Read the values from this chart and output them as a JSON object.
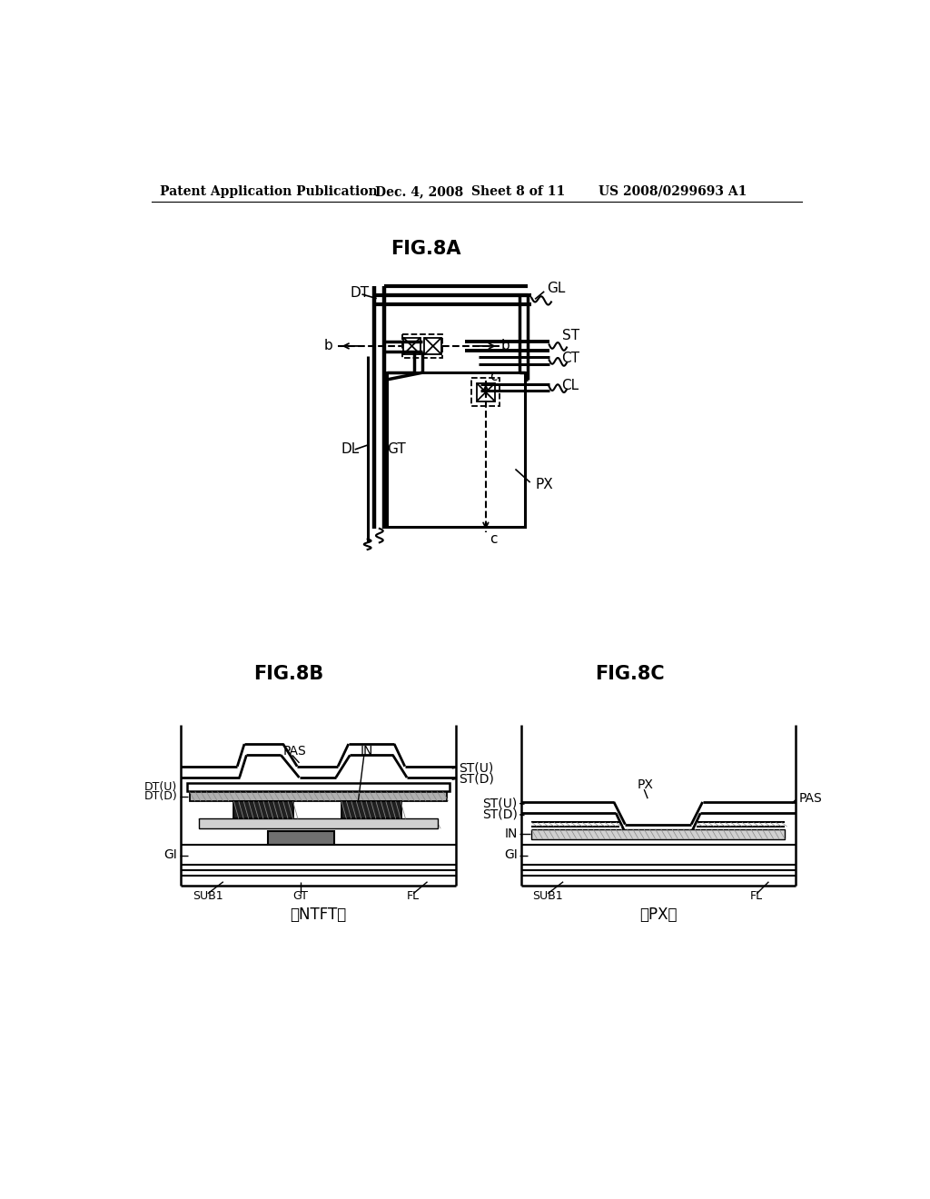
{
  "background_color": "#ffffff",
  "header_text": "Patent Application Publication",
  "header_date": "Dec. 4, 2008",
  "header_sheet": "Sheet 8 of 11",
  "header_patent": "US 2008/0299693 A1",
  "fig8a_title": "FIG.8A",
  "fig8b_title": "FIG.8B",
  "fig8c_title": "FIG.8C",
  "ntft_label": "〈NTFT〉",
  "px_label2": "〈PX〉"
}
